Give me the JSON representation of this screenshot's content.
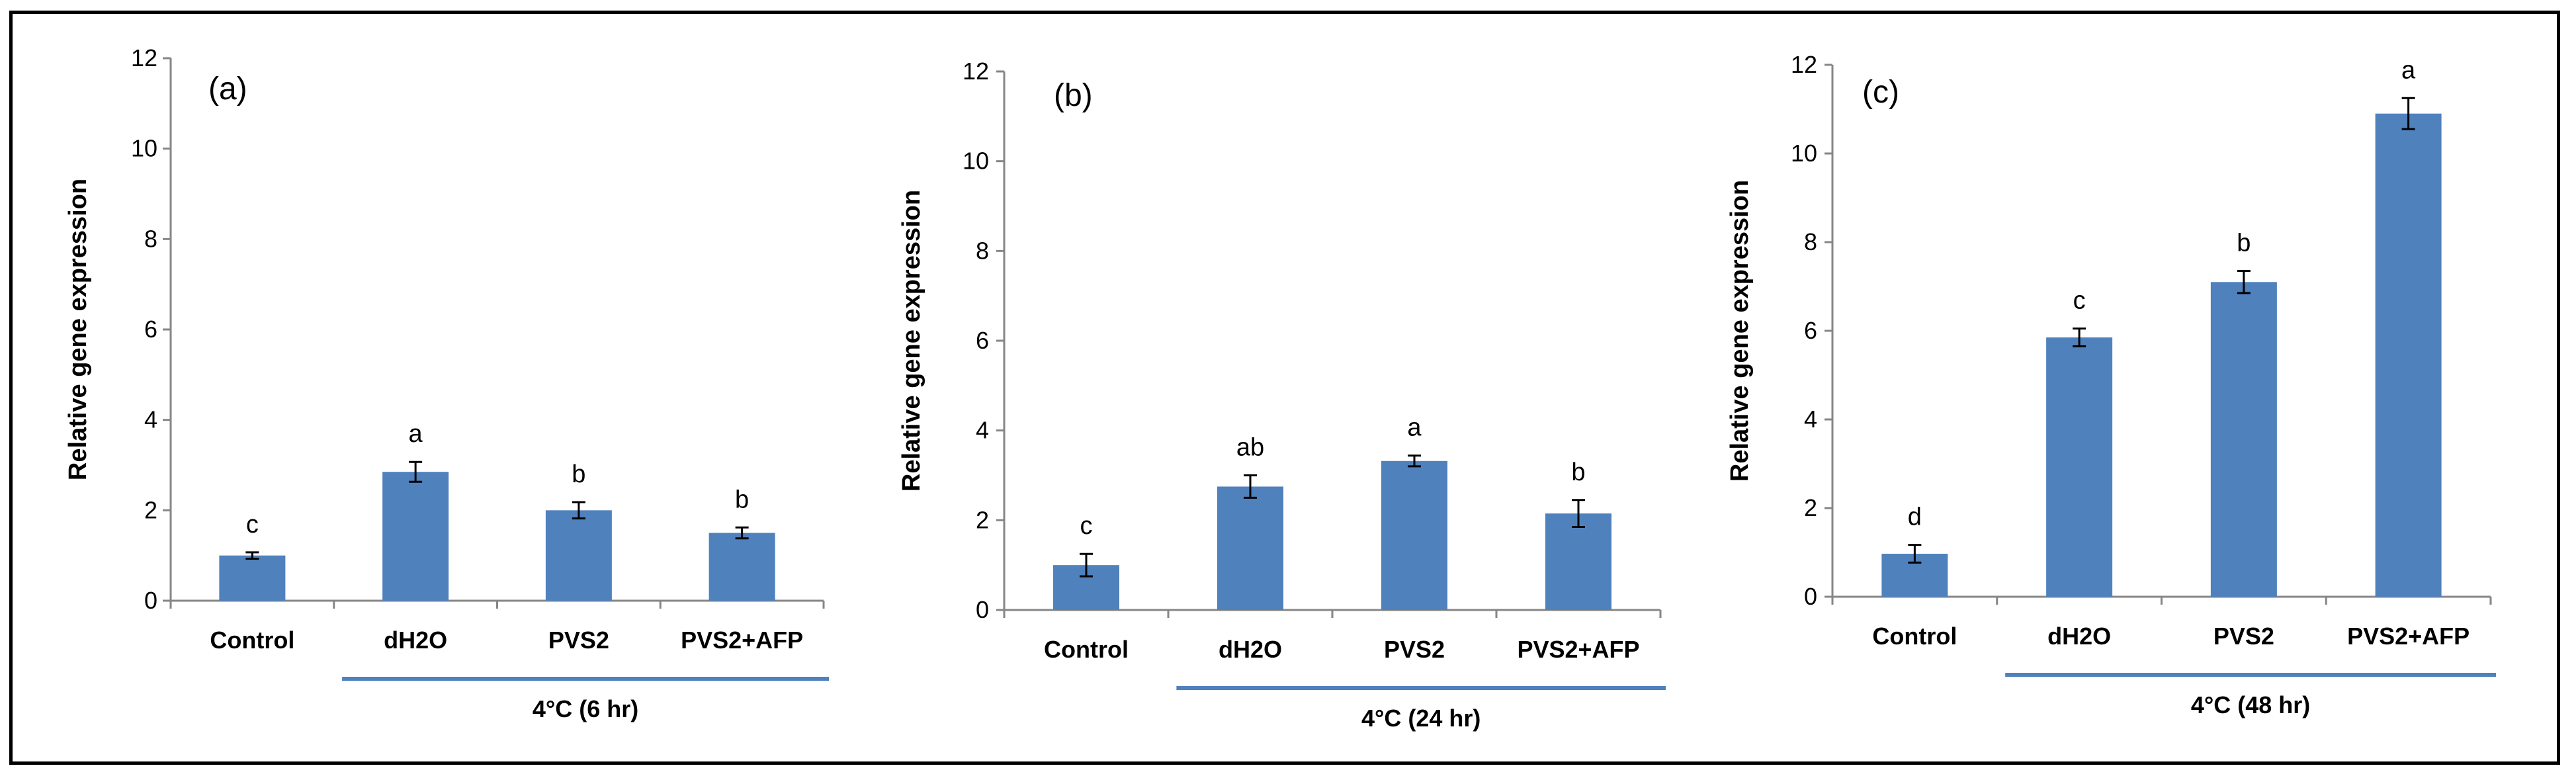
{
  "chart_data": [
    {
      "type": "bar",
      "panel_label": "(a)",
      "ylabel": "Relative gene expression",
      "ylim": [
        0,
        12
      ],
      "yticks": [
        0,
        2,
        4,
        6,
        8,
        10,
        12
      ],
      "categories": [
        "Control",
        "dH2O",
        "PVS2",
        "PVS2+AFP"
      ],
      "values": [
        1.0,
        2.85,
        2.0,
        1.5
      ],
      "errors": [
        0.07,
        0.22,
        0.18,
        0.12
      ],
      "significance": [
        "c",
        "a",
        "b",
        "b"
      ],
      "group_label": "4°C (6 hr)",
      "bar_color": "#4f81bd",
      "group_line_color": "#4f81bd"
    },
    {
      "type": "bar",
      "panel_label": "(b)",
      "ylabel": "Relative gene expression",
      "ylim": [
        0,
        12
      ],
      "yticks": [
        0,
        2,
        4,
        6,
        8,
        10,
        12
      ],
      "categories": [
        "Control",
        "dH2O",
        "PVS2",
        "PVS2+AFP"
      ],
      "values": [
        1.0,
        2.75,
        3.32,
        2.15
      ],
      "errors": [
        0.25,
        0.25,
        0.12,
        0.3
      ],
      "significance": [
        "c",
        "ab",
        "a",
        "b"
      ],
      "group_label": "4°C (24 hr)",
      "bar_color": "#4f81bd",
      "group_line_color": "#4f81bd"
    },
    {
      "type": "bar",
      "panel_label": "(c)",
      "ylabel": "Relative gene expression",
      "ylim": [
        0,
        12
      ],
      "yticks": [
        0,
        2,
        4,
        6,
        8,
        10,
        12
      ],
      "categories": [
        "Control",
        "dH2O",
        "PVS2",
        "PVS2+AFP"
      ],
      "values": [
        0.97,
        5.85,
        7.1,
        10.9
      ],
      "errors": [
        0.2,
        0.2,
        0.25,
        0.35
      ],
      "significance": [
        "d",
        "c",
        "b",
        "a"
      ],
      "group_label": "4°C (48 hr)",
      "bar_color": "#4f81bd",
      "group_line_color": "#4f81bd"
    }
  ]
}
